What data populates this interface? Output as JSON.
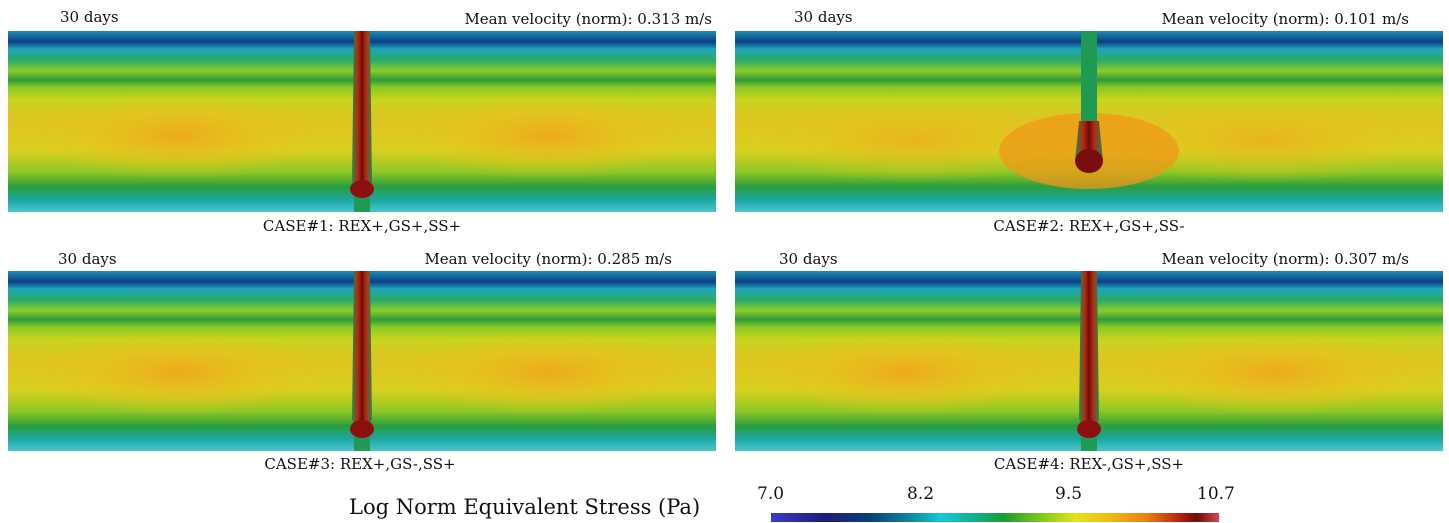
{
  "panels": [
    {
      "days": "30 days",
      "velocity": "Mean velocity (norm): 0.313 m/s",
      "caption": "CASE#1: REX+,GS+,SS+"
    },
    {
      "days": "30 days",
      "velocity": "Mean velocity (norm): 0.101 m/s",
      "caption": "CASE#2: REX+,GS+,SS-"
    },
    {
      "days": "30 days",
      "velocity": "Mean velocity (norm): 0.285 m/s",
      "caption": "CASE#3: REX+,GS-,SS+"
    },
    {
      "days": "30 days",
      "velocity": "Mean velocity (norm): 0.307 m/s",
      "caption": "CASE#4: REX-,GS+,SS+"
    }
  ],
  "colorbar": {
    "title": "Log Norm Equivalent Stress (Pa)",
    "ticks": [
      "7.0",
      "8.2",
      "9.5",
      "10.7"
    ],
    "colors": [
      "#3b3bc8",
      "#1d1d7a",
      "#128ea6",
      "#19c8d8",
      "#1a9d2e",
      "#e3e31a",
      "#ec7c13",
      "#6a0d0d",
      "#d4484c"
    ]
  }
}
